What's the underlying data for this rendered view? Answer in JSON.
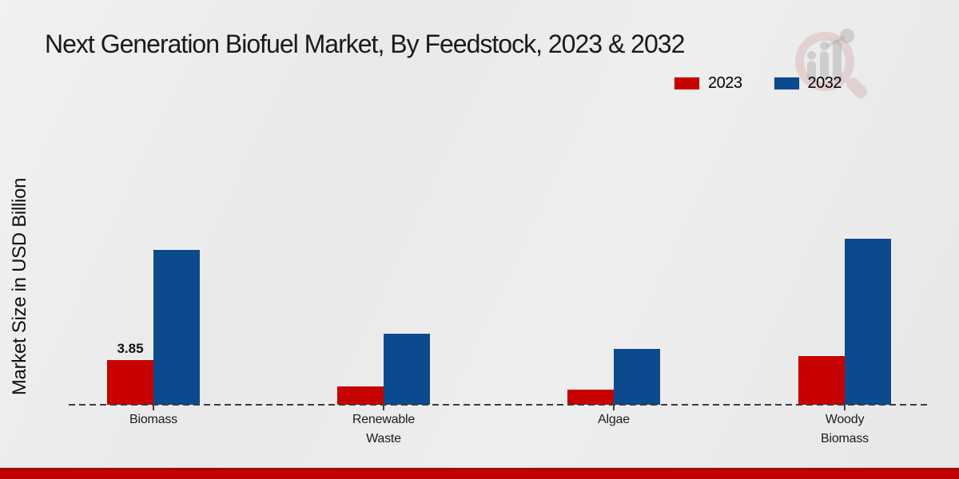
{
  "chart_data": {
    "type": "bar",
    "title": "Next Generation Biofuel Market, By Feedstock, 2023 & 2032",
    "xlabel": "",
    "ylabel": "Market Size in USD Billion",
    "categories": [
      "Biomass",
      "Renewable Waste",
      "Algae",
      "Woody Biomass"
    ],
    "category_label_lines": [
      [
        "Biomass"
      ],
      [
        "Renewable",
        "Waste"
      ],
      [
        "Algae"
      ],
      [
        "Woody",
        "Biomass"
      ]
    ],
    "series": [
      {
        "name": "2023",
        "color": "#c70100",
        "values": [
          3.85,
          1.6,
          1.3,
          4.2
        ],
        "data_labels": [
          "3.85",
          "",
          "",
          ""
        ]
      },
      {
        "name": "2032",
        "color": "#0b4a8c",
        "values": [
          13.3,
          6.1,
          4.8,
          14.3
        ],
        "data_labels": [
          "",
          "",
          "",
          ""
        ]
      }
    ],
    "ylim": [
      0,
      16
    ],
    "grid": false,
    "y_axis_ticks_visible": false,
    "baseline_style": "dashed",
    "legend_position": "top-right"
  },
  "watermark": {
    "icon": "magnifier-bar-chart-logo"
  },
  "colors": {
    "series_2023": "#c70100",
    "series_2032": "#0b4a8c",
    "footer_accent": "#c00101",
    "background": "#ebebeb"
  }
}
